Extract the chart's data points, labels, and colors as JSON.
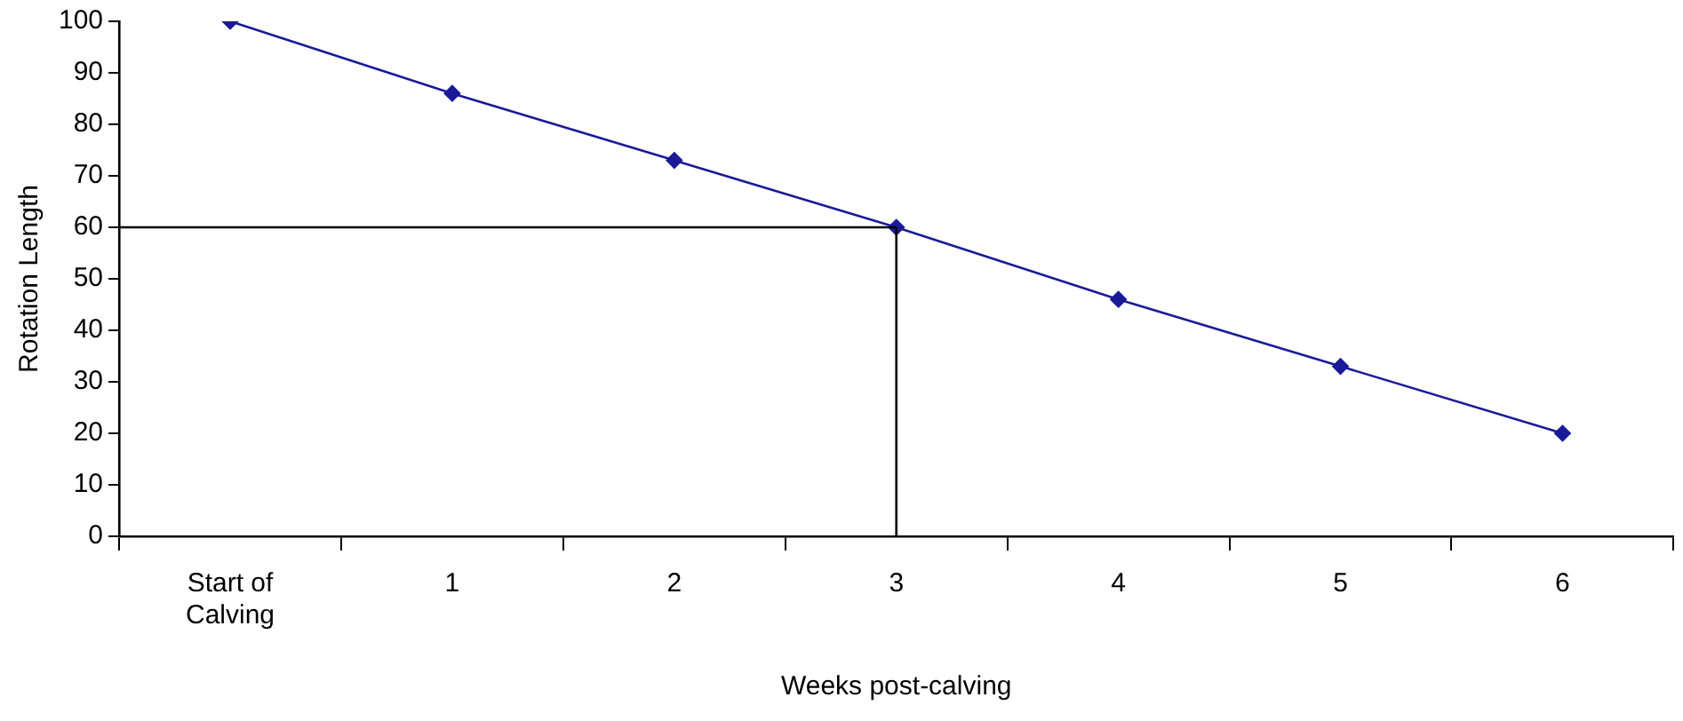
{
  "chart_data": {
    "type": "line",
    "xlabel": "Weeks post-calving",
    "ylabel": "Rotation Length",
    "categories": [
      "Start of Calving",
      "1",
      "2",
      "3",
      "4",
      "5",
      "6"
    ],
    "series": [
      {
        "color": "#1a1a99",
        "values": [
          100,
          86,
          73,
          60,
          46,
          33,
          20
        ]
      }
    ],
    "ylim": [
      0,
      100
    ],
    "yticks": [
      0,
      10,
      20,
      30,
      40,
      50,
      60,
      70,
      80,
      90,
      100
    ],
    "ref_lines": [
      {
        "axis": "y",
        "value": 60,
        "color": "#000000"
      },
      {
        "axis": "x",
        "value": "3",
        "color": "#000000"
      }
    ],
    "marker": "diamond",
    "line_style": "solid",
    "grid": false,
    "legend": false
  }
}
